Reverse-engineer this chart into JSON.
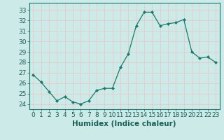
{
  "x": [
    0,
    1,
    2,
    3,
    4,
    5,
    6,
    7,
    8,
    9,
    10,
    11,
    12,
    13,
    14,
    15,
    16,
    17,
    18,
    19,
    20,
    21,
    22,
    23
  ],
  "y": [
    26.8,
    26.1,
    25.2,
    24.3,
    24.7,
    24.2,
    24.0,
    24.3,
    25.3,
    25.5,
    25.5,
    27.5,
    28.8,
    31.5,
    32.8,
    32.8,
    31.5,
    31.7,
    31.8,
    32.1,
    29.0,
    28.4,
    28.5,
    28.0
  ],
  "line_color": "#1a7a6e",
  "marker": "D",
  "marker_size": 2.0,
  "bg_color": "#cceae7",
  "grid_color": "#e8c8c8",
  "xlabel": "Humidex (Indice chaleur)",
  "ylabel_ticks": [
    24,
    25,
    26,
    27,
    28,
    29,
    30,
    31,
    32,
    33
  ],
  "ylim": [
    23.5,
    33.7
  ],
  "xlim": [
    -0.5,
    23.5
  ],
  "tick_label_color": "#1a5f58",
  "axis_color": "#1a7a6e",
  "label_fontsize": 7.5,
  "tick_fontsize": 6.5
}
